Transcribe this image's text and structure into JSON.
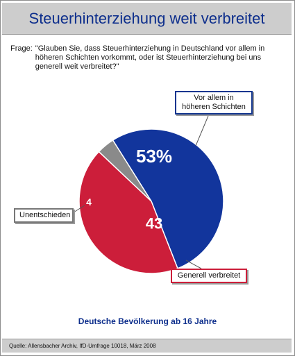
{
  "title": "Steuerhinterziehung weit verbreitet",
  "question": {
    "label": "Frage:",
    "text": "\"Glauben Sie, dass Steuerhinterziehung in Deutschland vor allem in höheren Schichten vorkommt, oder ist Steuerhinterziehung bei uns generell weit verbreitet?\""
  },
  "chart_data": {
    "type": "pie",
    "slices": [
      {
        "name": "Vor allem in höheren Schichten",
        "value": 53,
        "label": "53%",
        "color": "#12359c"
      },
      {
        "name": "Generell verbreitet",
        "value": 43,
        "label": "43",
        "color": "#cc1e3a"
      },
      {
        "name": "Unentschieden",
        "value": 4,
        "label": "4",
        "color": "#8a8a8a"
      }
    ]
  },
  "callouts": {
    "upper": "Vor allem in höheren Schichten",
    "lower": "Generell verbreitet",
    "undecided": "Unentschieden"
  },
  "base_text": "Deutsche Bevölkerung ab 16 Jahre",
  "source": "Quelle: Allensbacher Archiv, IfD-Umfrage 10018, März 2008",
  "colors": {
    "title": "#0d2e8c",
    "panel": "#cdcdcd"
  }
}
